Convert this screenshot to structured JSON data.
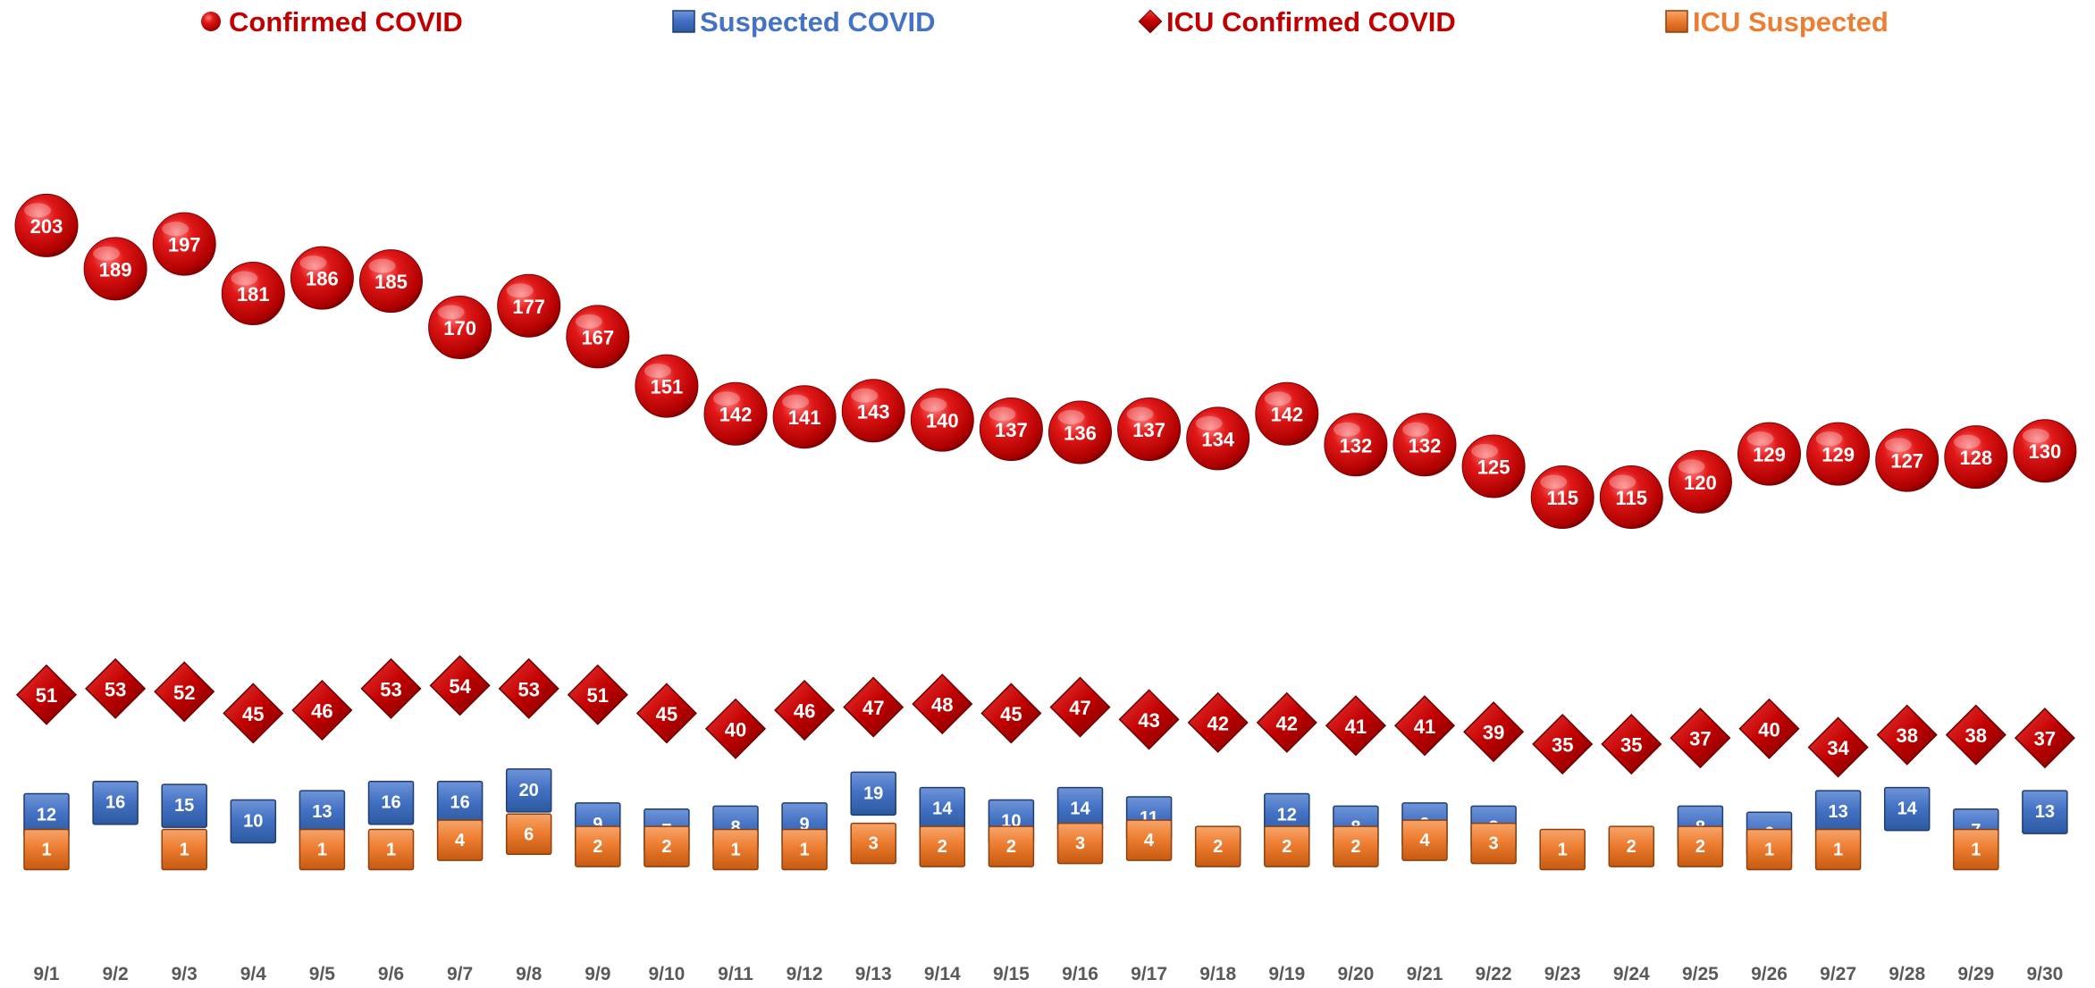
{
  "colors": {
    "confirmed": "#c00000",
    "suspected": "#4472c4",
    "icu_confirmed": "#c00000",
    "icu_suspected": "#ed7d31",
    "tick_label": "#595959"
  },
  "legend": [
    {
      "key": "confirmed",
      "label": "Confirmed COVID",
      "icon": "sphere-marker-icon"
    },
    {
      "key": "suspected",
      "label": "Suspected COVID",
      "icon": "square-marker-icon"
    },
    {
      "key": "icu_confirmed",
      "label": "ICU Confirmed COVID",
      "icon": "diamond-marker-icon"
    },
    {
      "key": "icu_suspected",
      "label": "ICU Suspected",
      "icon": "square-marker-icon"
    }
  ],
  "chart_data": {
    "type": "scatter",
    "title": "",
    "xlabel": "",
    "ylabel": "",
    "legend_position": "top",
    "grid": false,
    "ylim": [
      0,
      210
    ],
    "categories": [
      "9/1",
      "9/2",
      "9/3",
      "9/4",
      "9/5",
      "9/6",
      "9/7",
      "9/8",
      "9/9",
      "9/10",
      "9/11",
      "9/12",
      "9/13",
      "9/14",
      "9/15",
      "9/16",
      "9/17",
      "9/18",
      "9/19",
      "9/20",
      "9/21",
      "9/22",
      "9/23",
      "9/24",
      "9/25",
      "9/26",
      "9/27",
      "9/28",
      "9/29",
      "9/30"
    ],
    "series": [
      {
        "name": "Confirmed COVID",
        "marker": "sphere",
        "values": [
          203,
          189,
          197,
          181,
          186,
          185,
          170,
          177,
          167,
          151,
          142,
          141,
          143,
          140,
          137,
          136,
          137,
          134,
          142,
          132,
          132,
          125,
          115,
          115,
          120,
          129,
          129,
          127,
          128,
          130
        ]
      },
      {
        "name": "Suspected COVID",
        "marker": "square",
        "values": [
          12,
          16,
          15,
          10,
          13,
          16,
          16,
          20,
          9,
          7,
          8,
          9,
          19,
          14,
          10,
          14,
          11,
          5,
          12,
          8,
          9,
          8,
          3,
          5,
          8,
          6,
          13,
          14,
          7,
          13
        ]
      },
      {
        "name": "ICU Confirmed COVID",
        "marker": "diamond",
        "values": [
          51,
          53,
          52,
          45,
          46,
          53,
          54,
          53,
          51,
          45,
          40,
          46,
          47,
          48,
          45,
          47,
          43,
          42,
          42,
          41,
          41,
          39,
          35,
          35,
          37,
          40,
          34,
          38,
          38,
          37
        ]
      },
      {
        "name": "ICU Suspected",
        "marker": "square",
        "values": [
          1,
          null,
          1,
          null,
          1,
          1,
          4,
          6,
          2,
          2,
          1,
          1,
          3,
          2,
          2,
          3,
          4,
          2,
          2,
          2,
          4,
          3,
          1,
          2,
          2,
          1,
          1,
          null,
          1,
          null
        ]
      }
    ]
  }
}
